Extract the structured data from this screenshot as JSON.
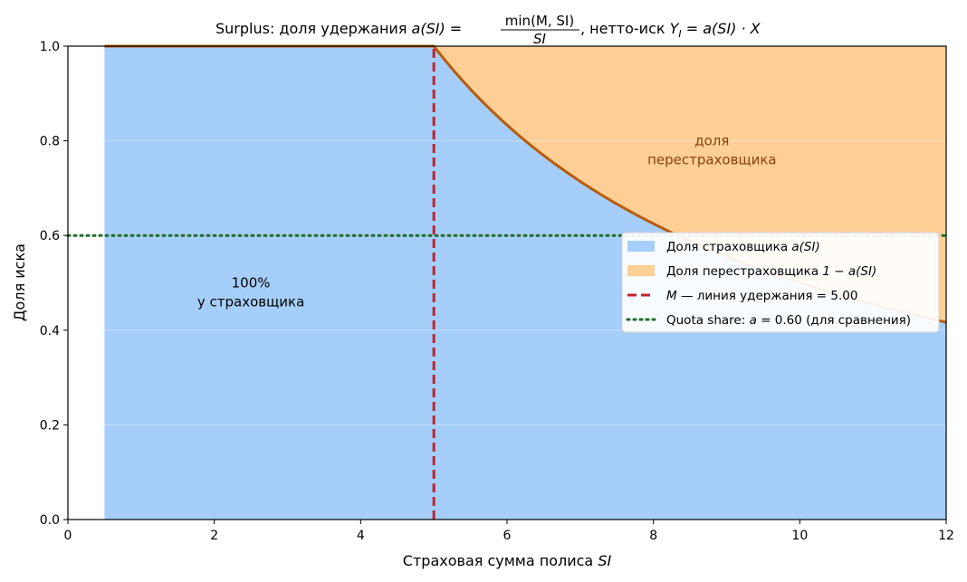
{
  "chart_data": {
    "type": "area",
    "title": {
      "prefix": "Surplus: доля удержания ",
      "a_of_si": "a(SI) =",
      "frac_num": "min(M, SI)",
      "frac_den": "SI",
      "suffix_label": ",   нетто-иск ",
      "net_formula": "Y",
      "net_sub": "I",
      "net_rhs": " = a(SI) · X"
    },
    "xlabel": "Страховая сумма полиса ",
    "xlabel_math": "SI",
    "ylabel": "Доля иска",
    "xlim": [
      0,
      12
    ],
    "ylim": [
      0,
      1
    ],
    "xticks": [
      0,
      2,
      4,
      6,
      8,
      10,
      12
    ],
    "xtick_labels": [
      "0",
      "2",
      "4",
      "6",
      "8",
      "10",
      "12"
    ],
    "yticks": [
      0,
      0.2,
      0.4,
      0.6,
      0.8,
      1.0
    ],
    "ytick_labels": [
      "0.0",
      "0.2",
      "0.4",
      "0.6",
      "0.8",
      "1.0"
    ],
    "grid": true,
    "retention_M": 5.0,
    "si_range": [
      0.5,
      12
    ],
    "quota_share_a": 0.6,
    "retained_share_points": [
      {
        "x": 0.5,
        "y": 1.0
      },
      {
        "x": 5.0,
        "y": 1.0
      },
      {
        "x": 6.0,
        "y": 0.8333
      },
      {
        "x": 7.0,
        "y": 0.7143
      },
      {
        "x": 8.0,
        "y": 0.625
      },
      {
        "x": 9.0,
        "y": 0.5556
      },
      {
        "x": 10.0,
        "y": 0.5
      },
      {
        "x": 11.0,
        "y": 0.4545
      },
      {
        "x": 12.0,
        "y": 0.4167
      }
    ],
    "colors": {
      "insurer_fill": "#a6cefa",
      "reinsurer_fill": "#ffcf96",
      "curve": "#b85c0c",
      "retention_line": "#c0232b",
      "quota_line": "#1d6e2a",
      "reinsurer_text": "#8a4309"
    },
    "annotations": {
      "reinsurer_line1": "доля",
      "reinsurer_line2": "перестраховщика",
      "insurer_line1": "100%",
      "insurer_line2": "у страховщика"
    },
    "legend": {
      "placement": "center-right",
      "items": [
        {
          "text": "Доля страховщика ",
          "math": "a(SI)"
        },
        {
          "text": "Доля перестраховщика ",
          "math": "1 − a(SI)"
        },
        {
          "text": "",
          "math": "M",
          "rest": " — линия удержания  = 5.00"
        },
        {
          "text": "Quota share: ",
          "math": "a",
          "rest": " = 0.60 (для сравнения)"
        }
      ]
    }
  }
}
